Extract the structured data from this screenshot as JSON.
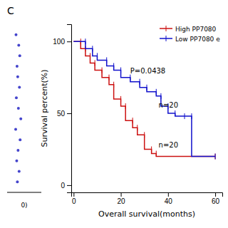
{
  "chart_data": [
    {
      "type": "scatter",
      "x": [
        0.3,
        0.35,
        0.28,
        0.32,
        0.38,
        0.25,
        0.4,
        0.33,
        0.27,
        0.36,
        0.31,
        0.29,
        0.37,
        0.34,
        0.26
      ],
      "values": [
        1,
        2,
        3,
        4,
        5,
        6,
        7,
        8,
        9,
        10,
        11,
        12,
        13,
        14,
        15
      ],
      "color": "#4444cc",
      "xlim": [
        0,
        1
      ],
      "ylim": [
        0,
        16
      ],
      "tick_labels": false,
      "annotations": [
        {
          "text": "0)",
          "x": 0.5,
          "y": -0.8
        }
      ]
    },
    {
      "type": "step",
      "title": "C",
      "x_label": "Overall survival(months)",
      "y_label": "Survival percent(%)",
      "xlim": [
        -1,
        63
      ],
      "ylim": [
        -5,
        112
      ],
      "xticks": [
        0,
        20,
        40,
        60
      ],
      "yticks": [
        0,
        50,
        100
      ],
      "marker": "tick",
      "legend": "upper right",
      "series": [
        {
          "name": "High PP7080",
          "color": "#cc1111",
          "x": [
            0,
            3,
            5,
            7,
            9,
            12,
            15,
            17,
            20,
            22,
            25,
            27,
            30,
            33,
            35,
            60
          ],
          "values": [
            100,
            95,
            90,
            85,
            80,
            75,
            70,
            60,
            55,
            45,
            40,
            35,
            25,
            22,
            20,
            20
          ]
        },
        {
          "name": "Low PP7080 e",
          "color": "#1111cc",
          "x": [
            0,
            5,
            8,
            10,
            14,
            17,
            20,
            24,
            28,
            31,
            35,
            37,
            40,
            43,
            47,
            50,
            60
          ],
          "values": [
            100,
            95,
            90,
            87,
            83,
            80,
            75,
            72,
            68,
            65,
            62,
            55,
            50,
            48,
            48,
            20,
            20
          ]
        }
      ],
      "annotations": [
        {
          "text": "P=0.0438",
          "x": 24,
          "y": 78
        },
        {
          "text": "n=20",
          "x": 36,
          "y": 26
        },
        {
          "text": "n=20",
          "x": 36,
          "y": 54
        }
      ]
    }
  ]
}
